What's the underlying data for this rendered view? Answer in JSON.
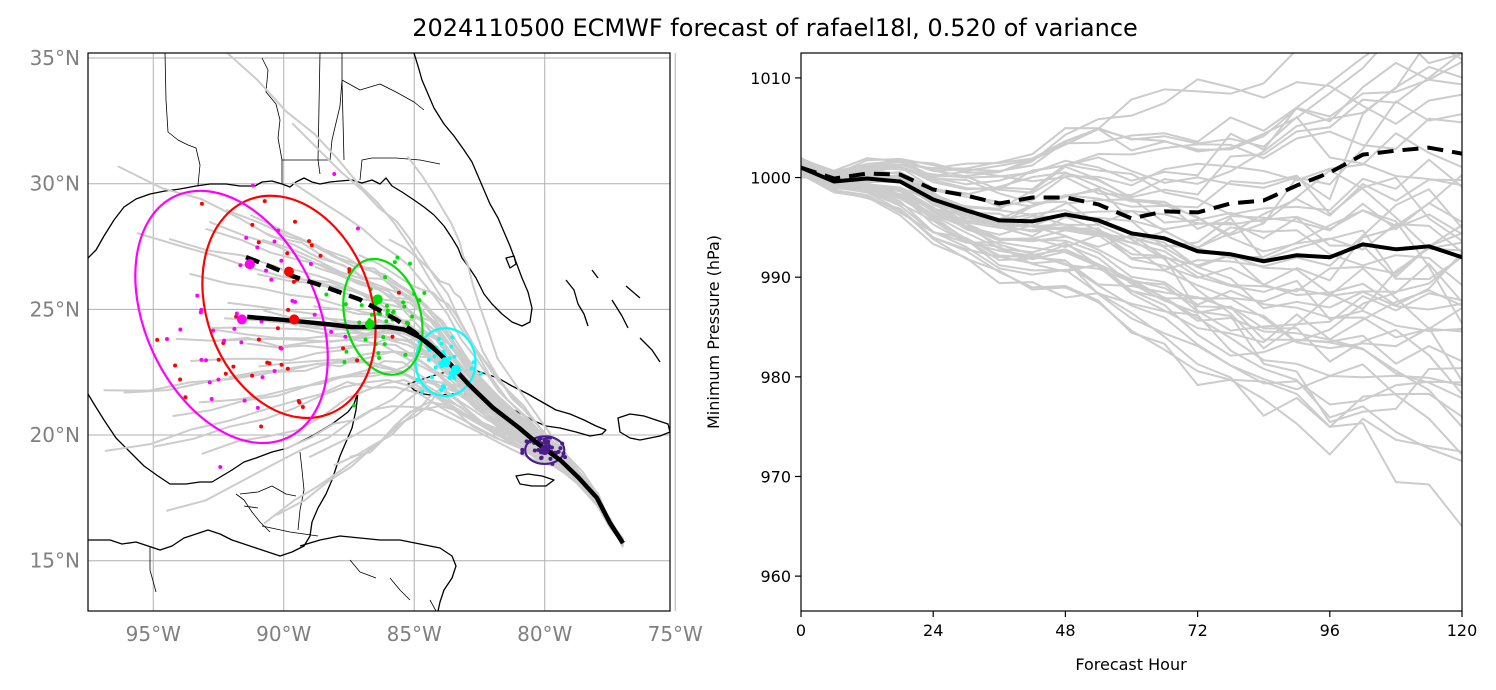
{
  "figure": {
    "title": "2024110500 ECMWF forecast of rafael18l, 0.520 of variance"
  },
  "chart_data": [
    {
      "type": "scatter",
      "panel": "track-map",
      "title": "",
      "xlabel": "",
      "ylabel": "",
      "lon_range": [
        -97.5,
        -75.2
      ],
      "lat_range": [
        13.0,
        35.2
      ],
      "xticks": [
        {
          "value": -95,
          "label": "95°W"
        },
        {
          "value": -90,
          "label": "90°W"
        },
        {
          "value": -85,
          "label": "85°W"
        },
        {
          "value": -80,
          "label": "80°W"
        },
        {
          "value": -75,
          "label": "75°W"
        }
      ],
      "yticks": [
        {
          "value": 15,
          "label": "15°N"
        },
        {
          "value": 20,
          "label": "20°N"
        },
        {
          "value": 25,
          "label": "25°N"
        },
        {
          "value": 30,
          "label": "30°N"
        },
        {
          "value": 35,
          "label": "35°N"
        }
      ],
      "grid": true,
      "colors": {
        "member": "#cccccc",
        "mean": "#000000",
        "coast": "#000000"
      },
      "tracks": {
        "mean_solid": {
          "lon": [
            -77.0,
            -77.5,
            -78.0,
            -78.7,
            -79.4,
            -80.2,
            -81.0,
            -82.0,
            -82.9,
            -83.6,
            -84.2,
            -84.8,
            -85.4,
            -86.0,
            -86.6,
            -87.4,
            -88.2,
            -89.2,
            -90.2,
            -91.4
          ],
          "lat": [
            15.7,
            16.5,
            17.5,
            18.3,
            19.0,
            19.6,
            20.3,
            21.1,
            22.0,
            22.8,
            23.4,
            23.9,
            24.2,
            24.3,
            24.3,
            24.3,
            24.4,
            24.5,
            24.6,
            24.7
          ]
        },
        "mean_dashed": {
          "lon": [
            -83.6,
            -84.3,
            -85.0,
            -85.7,
            -86.4,
            -87.1,
            -87.9,
            -88.7,
            -89.6,
            -90.5,
            -91.5
          ],
          "lat": [
            22.8,
            23.5,
            24.1,
            24.6,
            25.0,
            25.4,
            25.7,
            26.0,
            26.3,
            26.7,
            27.1
          ]
        }
      },
      "ellipses": [
        {
          "name": "",
          "color": "#4b1c8c",
          "lon": -80.0,
          "lat": 19.4,
          "rx_deg": 0.75,
          "ry_deg": 0.55,
          "angle_deg": 0
        },
        {
          "name": "",
          "color": "#00ffff",
          "lon": -83.8,
          "lat": 22.9,
          "rx_deg": 1.15,
          "ry_deg": 1.35,
          "angle_deg": 0
        },
        {
          "name": "",
          "color": "#00e000",
          "lon": -86.2,
          "lat": 24.7,
          "rx_deg": 1.45,
          "ry_deg": 2.35,
          "angle_deg": -15
        },
        {
          "name": "",
          "color": "#ff0000",
          "lon": -89.8,
          "lat": 25.1,
          "rx_deg": 3.15,
          "ry_deg": 4.55,
          "angle_deg": -20
        },
        {
          "name": "",
          "color": "#ff00ff",
          "lon": -92.0,
          "lat": 24.7,
          "rx_deg": 3.3,
          "ry_deg": 5.3,
          "angle_deg": -25
        }
      ],
      "centers": [
        {
          "color": "#4b1c8c",
          "lon": -80.0,
          "lat": 19.4
        },
        {
          "color": "#00ffff",
          "lon": -83.8,
          "lat": 22.9
        },
        {
          "color": "#00ffff",
          "lon": -83.4,
          "lat": 22.6
        },
        {
          "color": "#00e000",
          "lon": -86.7,
          "lat": 24.4
        },
        {
          "color": "#00e000",
          "lon": -86.4,
          "lat": 25.4
        },
        {
          "color": "#ff0000",
          "lon": -89.6,
          "lat": 24.6
        },
        {
          "color": "#ff0000",
          "lon": -89.8,
          "lat": 26.5
        },
        {
          "color": "#ff0000",
          "lon": -91.3,
          "lat": 26.8
        },
        {
          "color": "#ff00ff",
          "lon": -91.6,
          "lat": 24.6
        },
        {
          "color": "#ff00ff",
          "lon": -91.3,
          "lat": 26.8
        }
      ]
    },
    {
      "type": "line",
      "panel": "pressure",
      "title": "",
      "xlabel": "Forecast Hour",
      "ylabel": "Minimum Pressure (hPa)",
      "xlim": [
        0,
        120
      ],
      "ylim": [
        956.5,
        1012.5
      ],
      "xticks": [
        0,
        24,
        48,
        72,
        96,
        120
      ],
      "yticks": [
        960,
        970,
        980,
        990,
        1000,
        1010
      ],
      "grid": false,
      "x": [
        0,
        6,
        12,
        18,
        24,
        30,
        36,
        42,
        48,
        54,
        60,
        66,
        72,
        78,
        84,
        90,
        96,
        102,
        108,
        114,
        120
      ],
      "series": [
        {
          "style": "mean-solid",
          "color": "#000000",
          "values": [
            1001.0,
            999.6,
            999.9,
            999.6,
            997.8,
            996.7,
            995.7,
            995.6,
            996.3,
            995.7,
            994.4,
            993.9,
            992.6,
            992.3,
            991.6,
            992.2,
            992.0,
            993.3,
            992.8,
            993.1,
            992.0
          ]
        },
        {
          "style": "mean-dashed",
          "color": "#000000",
          "values": [
            1001.0,
            999.9,
            1000.4,
            1000.3,
            998.8,
            998.2,
            997.4,
            998.0,
            998.0,
            997.3,
            995.9,
            996.6,
            996.5,
            997.4,
            997.7,
            999.2,
            1000.5,
            1002.3,
            1002.7,
            1003.0,
            1002.4
          ]
        }
      ]
    }
  ]
}
